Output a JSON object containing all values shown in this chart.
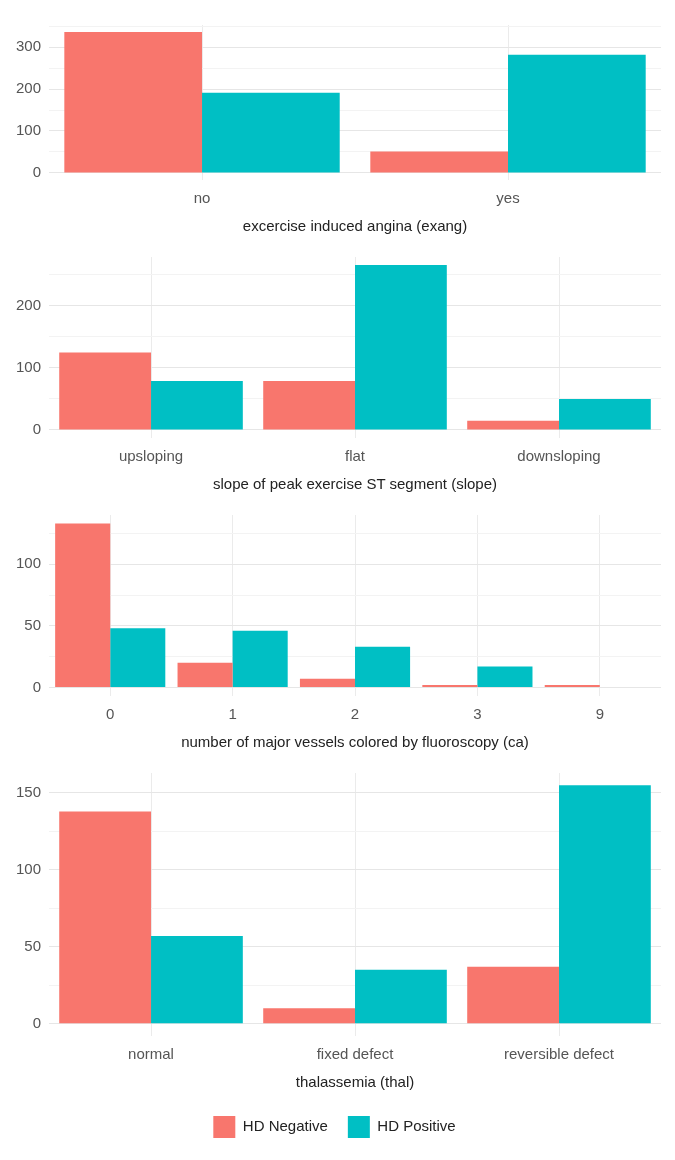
{
  "chart_data": [
    {
      "type": "bar",
      "xlabel": "excercise induced angina (exang)",
      "categories": [
        "no",
        "yes"
      ],
      "series": [
        {
          "color": "#f8766d",
          "values": [
            336,
            51
          ]
        },
        {
          "color": "#00bfc4",
          "values": [
            191,
            282
          ]
        }
      ],
      "ylim": [
        -17,
        353
      ],
      "yticks": [
        0,
        {
          "value": 50,
          "label": null
        },
        100,
        {
          "value": 150,
          "label": null
        },
        200,
        {
          "value": 250,
          "label": null
        },
        300,
        {
          "value": 350,
          "label": null
        }
      ],
      "grid": true,
      "legend": false
    },
    {
      "type": "bar",
      "xlabel": "slope of peak exercise ST segment (slope)",
      "categories": [
        "upsloping",
        "flat",
        "downsloping"
      ],
      "series": [
        {
          "color": "#f8766d",
          "values": [
            125,
            79,
            15
          ]
        },
        {
          "color": "#00bfc4",
          "values": [
            79,
            266,
            50
          ]
        }
      ],
      "ylim": [
        -13,
        279
      ],
      "yticks": [
        0,
        {
          "value": 50,
          "label": null
        },
        100,
        {
          "value": 150,
          "label": null
        },
        200,
        {
          "value": 250,
          "label": null
        }
      ],
      "grid": true,
      "legend": false
    },
    {
      "type": "bar",
      "xlabel": "number of major vessels colored by fluoroscopy (ca)",
      "categories": [
        "0",
        "1",
        "2",
        "3",
        "9"
      ],
      "series": [
        {
          "color": "#f8766d",
          "values": [
            133,
            20,
            7,
            2,
            2
          ]
        },
        {
          "color": "#00bfc4",
          "values": [
            48,
            46,
            33,
            17,
            null
          ]
        }
      ],
      "ylim": [
        -7,
        140
      ],
      "yticks": [
        0,
        {
          "value": 25,
          "label": null
        },
        50,
        {
          "value": 75,
          "label": null
        },
        100,
        {
          "value": 125,
          "label": null
        }
      ],
      "grid": true,
      "legend": false
    },
    {
      "type": "bar",
      "xlabel": "thalassemia (thal)",
      "categories": [
        "normal",
        "fixed defect",
        "reversible defect"
      ],
      "series": [
        {
          "name": "HD Negative",
          "color": "#f8766d",
          "values": [
            138,
            10,
            37
          ]
        },
        {
          "name": "HD Positive",
          "color": "#00bfc4",
          "values": [
            57,
            35,
            155
          ]
        }
      ],
      "ylim": [
        -8,
        163
      ],
      "yticks": [
        0,
        {
          "value": 25,
          "label": null
        },
        50,
        {
          "value": 75,
          "label": null
        },
        100,
        {
          "value": 125,
          "label": null
        },
        150
      ],
      "grid": true,
      "legend": "bottom"
    }
  ]
}
